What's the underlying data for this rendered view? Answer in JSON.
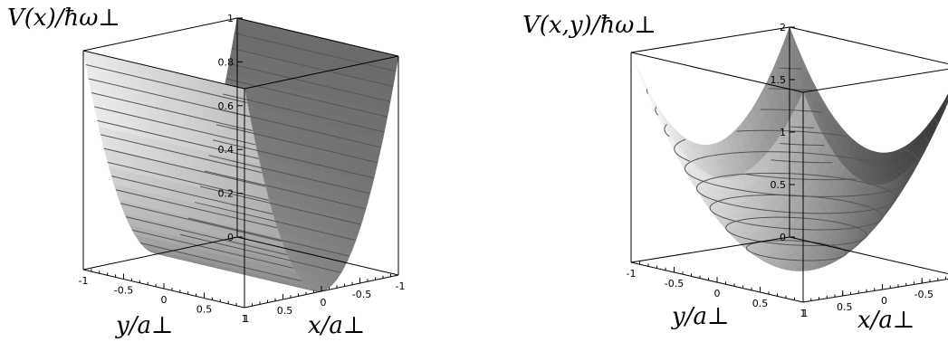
{
  "chart_data": [
    {
      "type": "surface3d",
      "title": "",
      "zlabel": "V(x)/ħω⊥",
      "xlabel": "x/a⊥",
      "ylabel": "y/a⊥",
      "xlim": [
        -1,
        1
      ],
      "ylim": [
        -1,
        1
      ],
      "zlim": [
        0,
        1
      ],
      "z_ticks": [
        "0",
        "0.2",
        "0.4",
        "0.6",
        "0.8",
        "1"
      ],
      "y_ticks": [
        "-1",
        "-0.5",
        "0",
        "0.5",
        "1"
      ],
      "x_ticks": [
        "1",
        "0.5",
        "0",
        "-0.5",
        "-1"
      ],
      "function": "V = x^2",
      "contour_levels": 14,
      "colors": {
        "shade_dark": "#3c3c3c",
        "shade_light": "#f4f4f4",
        "contour": "#555555"
      }
    },
    {
      "type": "surface3d",
      "title": "",
      "zlabel": "V(x,y)/ħω⊥",
      "xlabel": "x/a⊥",
      "ylabel": "y/a⊥",
      "xlim": [
        -1,
        1
      ],
      "ylim": [
        -1,
        1
      ],
      "zlim": [
        0,
        2
      ],
      "z_ticks": [
        "0",
        "0.5",
        "1",
        "1.5",
        "2"
      ],
      "y_ticks": [
        "-1",
        "-0.5",
        "0",
        "0.5",
        "1"
      ],
      "x_ticks": [
        "1",
        "0.5",
        "0",
        "-0.5",
        "-1"
      ],
      "function": "V = x^2 + y^2",
      "contour_levels": 10,
      "colors": {
        "shade_dark": "#3c3c3c",
        "shade_light": "#f4f4f4",
        "contour": "#555555"
      }
    }
  ]
}
